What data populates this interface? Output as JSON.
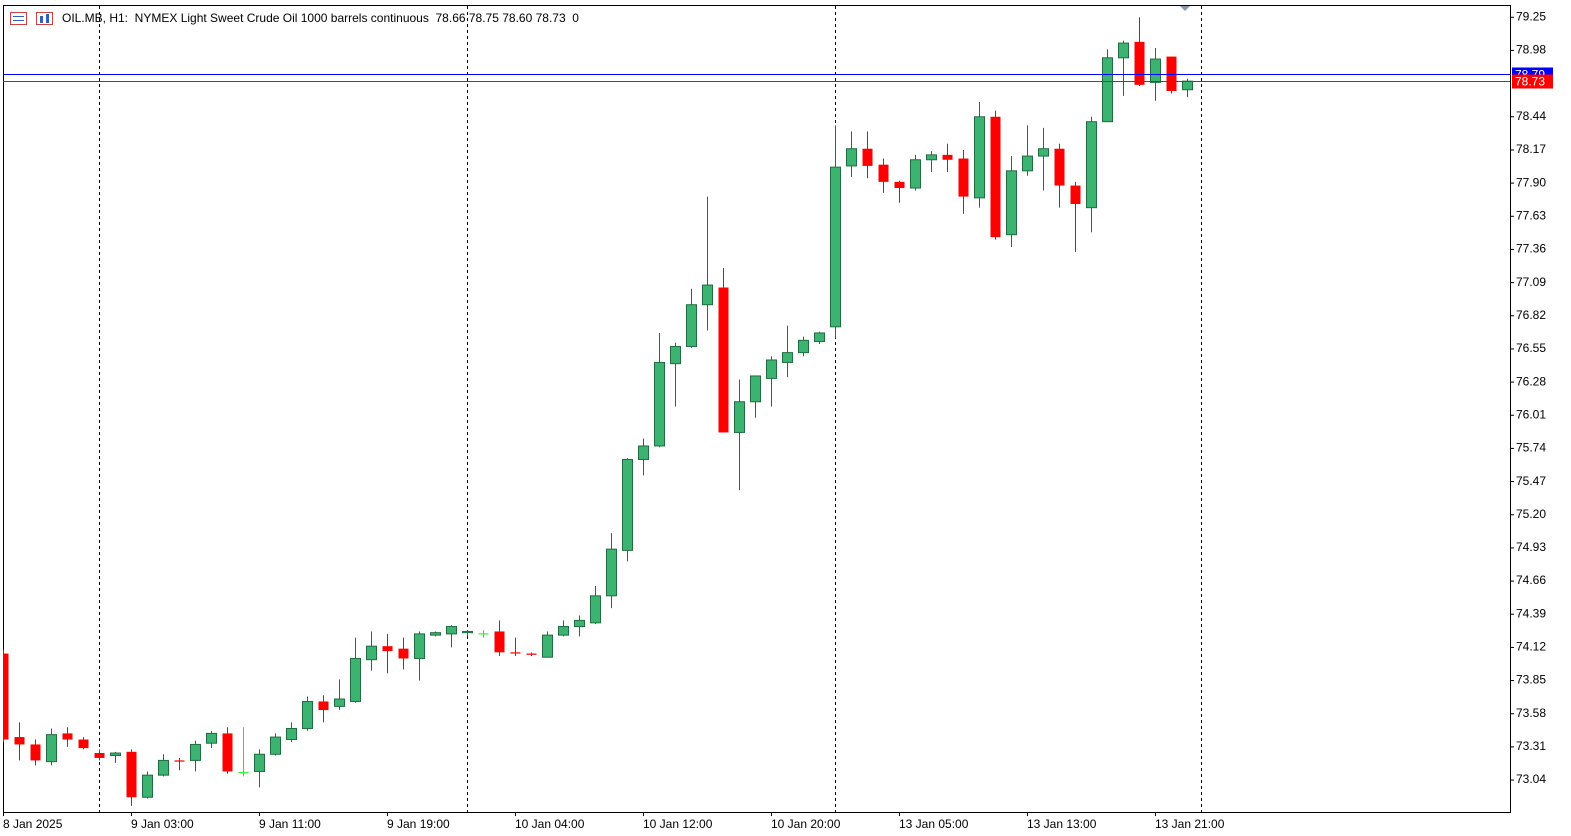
{
  "chart_data": {
    "type": "candlestick",
    "title": "OIL.MB, H1:  NYMEX Light Sweet Crude Oil 1000 barrels continuous  78.66 78.75 78.60 78.73  0",
    "categories": [
      "8 Jan 2025",
      null,
      null,
      null,
      null,
      null,
      null,
      null,
      "9 Jan 03:00",
      null,
      null,
      null,
      null,
      null,
      null,
      null,
      "9 Jan 11:00",
      null,
      null,
      null,
      null,
      null,
      null,
      null,
      "9 Jan 19:00",
      null,
      null,
      null,
      null,
      null,
      null,
      null,
      "10 Jan 04:00",
      null,
      null,
      null,
      null,
      null,
      null,
      null,
      "10 Jan 12:00",
      null,
      null,
      null,
      null,
      null,
      null,
      null,
      "10 Jan 20:00",
      null,
      null,
      null,
      null,
      null,
      null,
      null,
      "13 Jan 05:00",
      null,
      null,
      null,
      null,
      null,
      null,
      null,
      "13 Jan 13:00",
      null,
      null,
      null,
      null,
      null,
      null,
      null,
      "13 Jan 21:00",
      null,
      null
    ],
    "open": [
      74.07,
      73.39,
      73.33,
      73.19,
      73.42,
      73.37,
      73.26,
      73.24,
      73.27,
      72.9,
      73.08,
      73.2,
      73.2,
      73.34,
      73.42,
      73.1,
      73.11,
      73.25,
      73.37,
      73.46,
      73.68,
      73.64,
      73.68,
      74.02,
      74.13,
      74.11,
      74.03,
      74.22,
      74.23,
      74.24,
      74.23,
      74.25,
      74.08,
      74.07,
      74.04,
      74.22,
      74.29,
      74.32,
      74.54,
      74.91,
      75.65,
      75.76,
      76.43,
      76.57,
      76.91,
      77.05,
      75.87,
      76.12,
      76.31,
      76.44,
      76.52,
      76.61,
      76.73,
      78.04,
      78.18,
      78.05,
      77.91,
      77.86,
      78.09,
      78.13,
      78.1,
      77.78,
      78.44,
      77.48,
      78.0,
      78.12,
      78.18,
      77.88,
      77.7,
      78.4,
      78.92,
      79.05,
      78.72,
      78.93,
      78.66
    ],
    "high": [
      74.1,
      73.51,
      73.37,
      73.46,
      73.47,
      73.39,
      73.29,
      73.27,
      73.29,
      73.11,
      73.25,
      73.22,
      73.36,
      73.44,
      73.47,
      73.47,
      73.29,
      73.42,
      73.51,
      73.72,
      73.73,
      73.86,
      74.2,
      74.25,
      74.23,
      74.2,
      74.25,
      74.25,
      74.3,
      74.26,
      74.26,
      74.34,
      74.2,
      74.08,
      74.25,
      74.34,
      74.38,
      74.62,
      75.05,
      75.66,
      75.82,
      76.68,
      76.6,
      77.04,
      77.79,
      77.21,
      76.3,
      76.33,
      76.49,
      76.74,
      76.65,
      76.69,
      78.37,
      78.32,
      78.32,
      78.1,
      77.92,
      78.13,
      78.16,
      78.22,
      78.17,
      78.56,
      78.49,
      78.12,
      78.37,
      78.35,
      78.22,
      77.91,
      78.44,
      78.99,
      79.06,
      79.25,
      79.0,
      78.93,
      78.75
    ],
    "low": [
      73.35,
      73.2,
      73.16,
      73.16,
      73.31,
      73.29,
      73.2,
      73.18,
      72.83,
      72.89,
      73.07,
      73.12,
      73.11,
      73.3,
      73.09,
      73.07,
      72.98,
      73.24,
      73.35,
      73.44,
      73.51,
      73.61,
      73.67,
      73.93,
      73.91,
      73.94,
      73.85,
      74.21,
      74.12,
      74.21,
      74.2,
      74.05,
      74.05,
      74.05,
      74.04,
      74.21,
      74.21,
      74.31,
      74.44,
      74.82,
      75.52,
      75.75,
      76.08,
      76.56,
      76.7,
      75.87,
      75.4,
      75.99,
      76.08,
      76.32,
      76.49,
      76.59,
      76.64,
      77.95,
      77.94,
      77.82,
      77.74,
      77.84,
      77.99,
      77.99,
      77.65,
      77.7,
      77.44,
      77.38,
      77.96,
      77.84,
      77.7,
      77.34,
      77.5,
      78.4,
      78.61,
      78.69,
      78.57,
      78.63,
      78.6
    ],
    "close": [
      73.37,
      73.33,
      73.2,
      73.41,
      73.37,
      73.3,
      73.22,
      73.26,
      72.9,
      73.08,
      73.2,
      73.19,
      73.33,
      73.42,
      73.11,
      73.1,
      73.25,
      73.39,
      73.46,
      73.68,
      73.61,
      73.7,
      74.03,
      74.13,
      74.09,
      74.03,
      74.23,
      74.24,
      74.29,
      74.25,
      74.23,
      74.08,
      74.07,
      74.06,
      74.22,
      74.29,
      74.34,
      74.54,
      74.92,
      75.65,
      75.76,
      76.44,
      76.57,
      76.91,
      77.07,
      75.87,
      76.12,
      76.33,
      76.46,
      76.52,
      76.62,
      76.68,
      78.03,
      78.18,
      78.04,
      77.91,
      77.86,
      78.09,
      78.13,
      78.09,
      77.79,
      78.44,
      77.46,
      78.0,
      78.12,
      78.18,
      77.88,
      77.73,
      78.4,
      78.92,
      79.04,
      78.7,
      78.91,
      78.65,
      78.73
    ],
    "colors": {
      "up": "#3cb371",
      "down": "#ff0000",
      "doji": "#00ff00"
    },
    "price_lines": [
      {
        "value": 78.79,
        "color": "#0000ff"
      },
      {
        "value": 78.73,
        "color": "#ff0000"
      }
    ],
    "ylim": [
      72.78,
      79.35
    ],
    "yticks": [
      79.25,
      78.98,
      78.44,
      78.17,
      {
        "value": 77.9,
        "label": "77.90"
      },
      77.63,
      77.36,
      77.09,
      76.82,
      76.55,
      76.28,
      76.01,
      75.74,
      75.47,
      {
        "value": 75.2,
        "label": "75.20"
      },
      74.93,
      74.66,
      74.39,
      74.12,
      73.85,
      73.58,
      73.31,
      73.04
    ]
  }
}
